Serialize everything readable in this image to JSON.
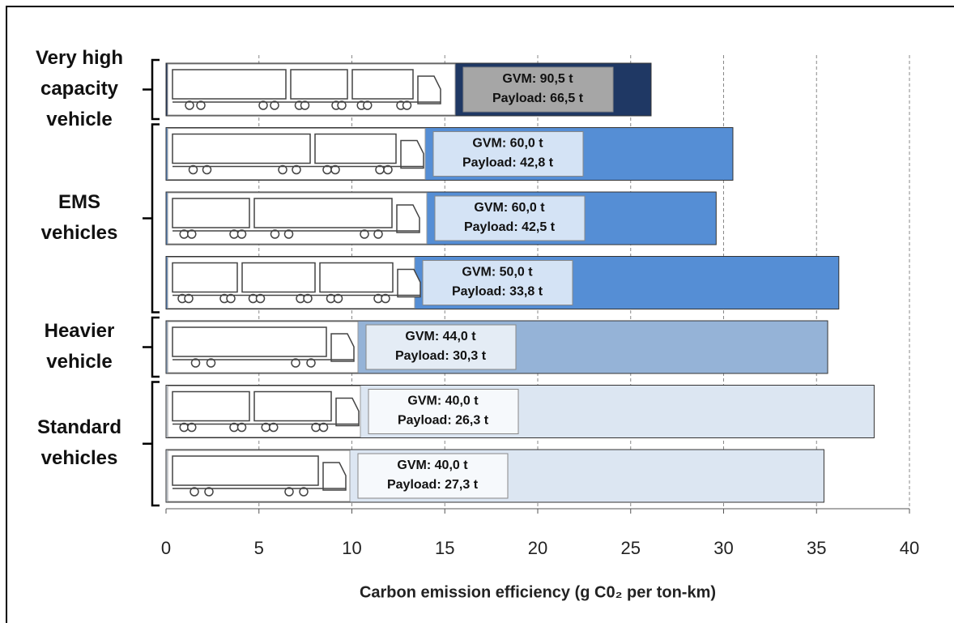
{
  "chart_data": {
    "type": "bar",
    "orientation": "horizontal",
    "xlabel": "Carbon emission efficiency (g C0₂ per ton-km)",
    "values": [
      26.1,
      30.5,
      29.6,
      36.2,
      35.6,
      38.1,
      35.4
    ],
    "colors": [
      "#1f3864",
      "#558ed5",
      "#558ed5",
      "#558ed5",
      "#95b3d7",
      "#dce6f2",
      "#dce6f2"
    ],
    "bar_labels": [
      [
        "GVM: 90,5 t",
        "Payload: 66,5 t"
      ],
      [
        "GVM: 60,0 t",
        "Payload: 42,8 t"
      ],
      [
        "GVM: 60,0 t",
        "Payload: 42,5 t"
      ],
      [
        "GVM: 50,0 t",
        "Payload: 33,8 t"
      ],
      [
        "GVM: 44,0 t",
        "Payload: 30,3 t"
      ],
      [
        "GVM: 40,0 t",
        "Payload: 26,3 t"
      ],
      [
        "GVM: 40,0 t",
        "Payload: 27,3 t"
      ]
    ],
    "groups": [
      {
        "lines": [
          "Very high",
          "capacity",
          "vehicle"
        ]
      },
      {
        "lines": [
          "EMS",
          "vehicles"
        ]
      },
      {
        "lines": [
          "Heavier",
          "vehicle"
        ]
      },
      {
        "lines": [
          "Standard",
          "vehicles"
        ]
      }
    ],
    "xlim": [
      0,
      40
    ],
    "xticks": [
      0,
      5,
      10,
      15,
      20,
      25,
      30,
      35,
      40
    ],
    "grid": true
  }
}
